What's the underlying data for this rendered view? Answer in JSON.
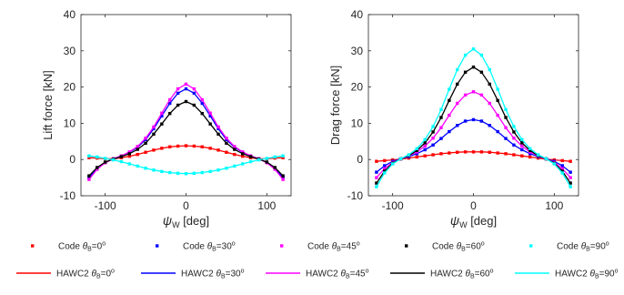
{
  "colors": {
    "red": "#ff0000",
    "blue": "#0000ff",
    "magenta": "#ff00ff",
    "black": "#000000",
    "cyan": "#00ffff"
  },
  "legend": {
    "code_prefix": "Code",
    "hawc2_prefix": "HAWC2",
    "theta_symbol": "θ",
    "theta_sub": "B",
    "degree_mark": "o",
    "entries": [
      {
        "angle": "0",
        "color": "#ff0000"
      },
      {
        "angle": "30",
        "color": "#0000ff"
      },
      {
        "angle": "45",
        "color": "#ff00ff"
      },
      {
        "angle": "60",
        "color": "#000000"
      },
      {
        "angle": "90",
        "color": "#00ffff"
      }
    ]
  },
  "chart_data": [
    {
      "type": "line",
      "title": "",
      "xlabel_symbol": "ψ",
      "xlabel_sub": "W",
      "xlabel_unit": " [deg]",
      "ylabel": "Lift force [kN]",
      "xlim": [
        -130,
        130
      ],
      "ylim": [
        -10,
        40
      ],
      "xticks": [
        "-100",
        "0",
        "100"
      ],
      "xtick_values": [
        -100,
        0,
        100
      ],
      "yticks": [
        "-10",
        "0",
        "10",
        "20",
        "30",
        "40"
      ],
      "ytick_values": [
        -10,
        0,
        10,
        20,
        30,
        40
      ],
      "x": [
        -120,
        -110,
        -100,
        -90,
        -80,
        -70,
        -60,
        -50,
        -40,
        -30,
        -20,
        -10,
        0,
        10,
        20,
        30,
        40,
        50,
        60,
        70,
        80,
        90,
        100,
        110,
        120
      ],
      "series": [
        {
          "name": "θB=0°",
          "color": "#ff0000",
          "values": [
            0.5,
            0.4,
            0.2,
            0.2,
            0.5,
            0.9,
            1.4,
            2.0,
            2.6,
            3.1,
            3.5,
            3.7,
            3.8,
            3.7,
            3.5,
            3.1,
            2.6,
            2.0,
            1.4,
            0.9,
            0.5,
            0.2,
            0.2,
            0.4,
            0.5
          ]
        },
        {
          "name": "θB=30°",
          "color": "#0000ff",
          "values": [
            -5.0,
            -2.5,
            -0.8,
            0.2,
            1.0,
            2.0,
            3.4,
            5.5,
            8.5,
            12.0,
            15.5,
            18.3,
            19.5,
            18.3,
            15.5,
            12.0,
            8.5,
            5.5,
            3.4,
            2.0,
            1.0,
            0.2,
            -0.8,
            -2.5,
            -5.0
          ]
        },
        {
          "name": "θB=45°",
          "color": "#ff00ff",
          "values": [
            -5.5,
            -2.7,
            -0.9,
            0.2,
            1.0,
            2.1,
            3.6,
            5.9,
            9.0,
            12.8,
            16.5,
            19.5,
            20.8,
            19.5,
            16.5,
            12.8,
            9.0,
            5.9,
            3.6,
            2.1,
            1.0,
            0.2,
            -0.9,
            -2.7,
            -5.5
          ]
        },
        {
          "name": "θB=60°",
          "color": "#000000",
          "values": [
            -4.5,
            -2.2,
            -0.7,
            0.1,
            0.8,
            1.6,
            2.8,
            4.5,
            7.0,
            9.8,
            12.7,
            15.0,
            16.0,
            15.0,
            12.7,
            9.8,
            7.0,
            4.5,
            2.8,
            1.6,
            0.8,
            0.1,
            -0.7,
            -2.2,
            -4.5
          ]
        },
        {
          "name": "θB=90°",
          "color": "#00ffff",
          "values": [
            1.0,
            0.7,
            0.3,
            -0.1,
            -0.6,
            -1.2,
            -1.8,
            -2.4,
            -2.9,
            -3.3,
            -3.6,
            -3.8,
            -3.9,
            -3.8,
            -3.6,
            -3.3,
            -2.9,
            -2.4,
            -1.8,
            -1.2,
            -0.6,
            -0.1,
            0.3,
            0.7,
            1.0
          ]
        }
      ]
    },
    {
      "type": "line",
      "title": "",
      "xlabel_symbol": "ψ",
      "xlabel_sub": "W",
      "xlabel_unit": " [deg]",
      "ylabel": "Drag force [kN]",
      "xlim": [
        -130,
        130
      ],
      "ylim": [
        -10,
        40
      ],
      "xticks": [
        "-100",
        "0",
        "100"
      ],
      "xtick_values": [
        -100,
        0,
        100
      ],
      "yticks": [
        "-10",
        "0",
        "10",
        "20",
        "30",
        "40"
      ],
      "ytick_values": [
        -10,
        0,
        10,
        20,
        30,
        40
      ],
      "x": [
        -120,
        -110,
        -100,
        -90,
        -80,
        -70,
        -60,
        -50,
        -40,
        -30,
        -20,
        -10,
        0,
        10,
        20,
        30,
        40,
        50,
        60,
        70,
        80,
        90,
        100,
        110,
        120
      ],
      "series": [
        {
          "name": "θB=0°",
          "color": "#ff0000",
          "values": [
            -0.5,
            -0.3,
            -0.1,
            0.1,
            0.4,
            0.7,
            1.0,
            1.3,
            1.6,
            1.8,
            2.0,
            2.1,
            2.1,
            2.1,
            2.0,
            1.8,
            1.6,
            1.3,
            1.0,
            0.7,
            0.4,
            0.1,
            -0.1,
            -0.3,
            -0.5
          ]
        },
        {
          "name": "θB=30°",
          "color": "#0000ff",
          "values": [
            -3.5,
            -1.7,
            -0.5,
            0.2,
            0.8,
            1.6,
            2.7,
            4.0,
            5.8,
            7.7,
            9.4,
            10.6,
            11.0,
            10.6,
            9.4,
            7.7,
            5.8,
            4.0,
            2.7,
            1.6,
            0.8,
            0.2,
            -0.5,
            -1.7,
            -3.5
          ]
        },
        {
          "name": "θB=45°",
          "color": "#ff00ff",
          "values": [
            -5.0,
            -2.5,
            -0.8,
            0.2,
            1.0,
            2.1,
            3.7,
            5.9,
            8.8,
            12.2,
            15.5,
            17.8,
            18.7,
            17.8,
            15.5,
            12.2,
            8.8,
            5.9,
            3.7,
            2.1,
            1.0,
            0.2,
            -0.8,
            -2.5,
            -5.0
          ]
        },
        {
          "name": "θB=60°",
          "color": "#000000",
          "values": [
            -6.5,
            -3.2,
            -1.0,
            0.2,
            1.1,
            2.5,
            4.6,
            7.6,
            11.6,
            16.3,
            20.8,
            24.1,
            25.5,
            24.1,
            20.8,
            16.3,
            11.6,
            7.6,
            4.6,
            2.5,
            1.1,
            0.2,
            -1.0,
            -3.2,
            -6.5
          ]
        },
        {
          "name": "θB=90°",
          "color": "#00ffff",
          "values": [
            -7.5,
            -3.7,
            -1.2,
            0.2,
            1.3,
            3.0,
            5.5,
            9.1,
            13.8,
            19.4,
            24.8,
            28.8,
            30.5,
            28.8,
            24.8,
            19.4,
            13.8,
            9.1,
            5.5,
            3.0,
            1.3,
            0.2,
            -1.2,
            -3.7,
            -7.5
          ]
        }
      ]
    }
  ]
}
